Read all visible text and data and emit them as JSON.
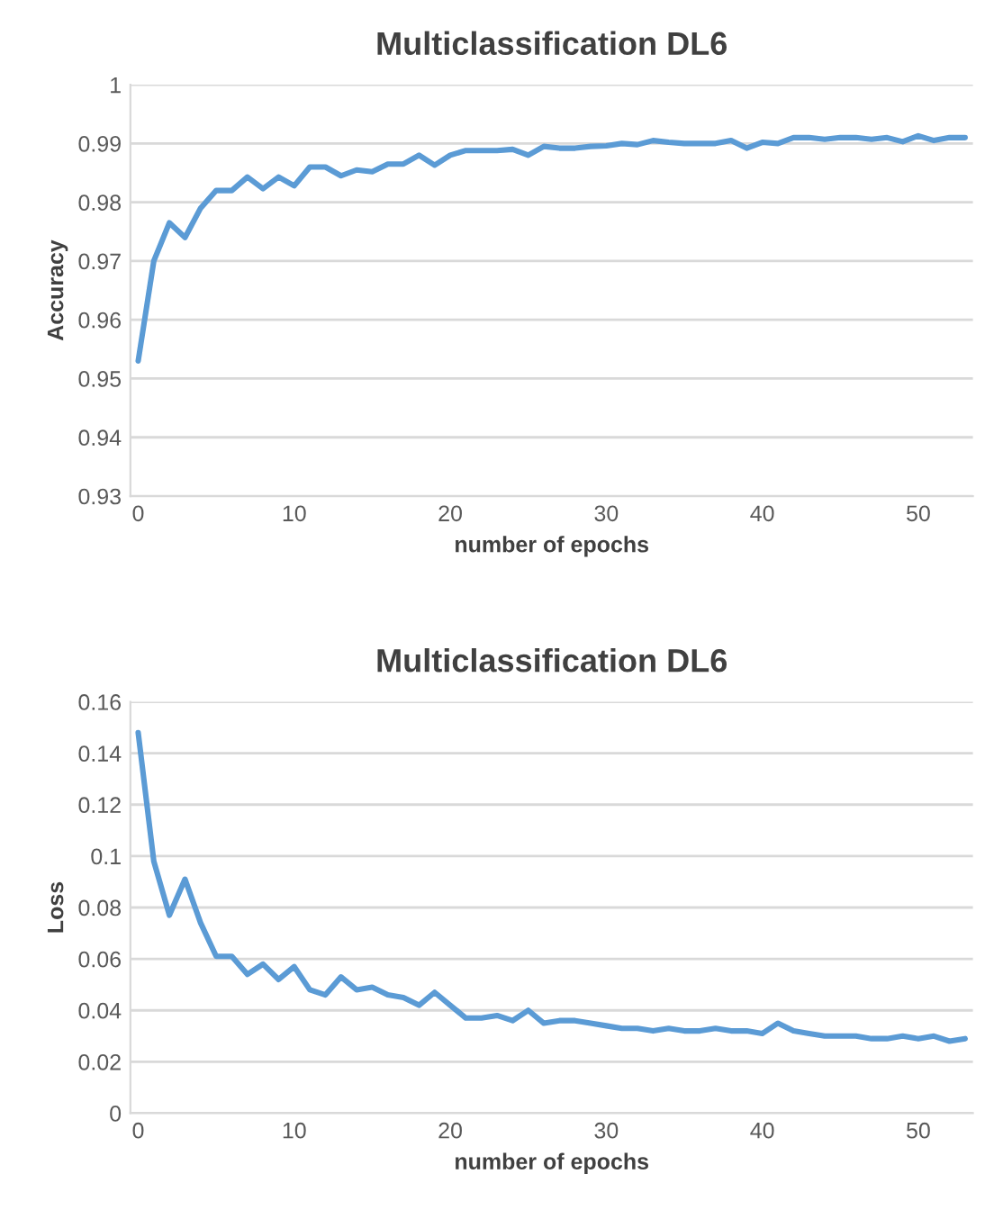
{
  "chart_data": [
    {
      "type": "line",
      "title": "Multiclassification DL6",
      "xlabel": "number of epochs",
      "ylabel": "Accuracy",
      "x": [
        0,
        1,
        2,
        3,
        4,
        5,
        6,
        7,
        8,
        9,
        10,
        11,
        12,
        13,
        14,
        15,
        16,
        17,
        18,
        19,
        20,
        21,
        22,
        23,
        24,
        25,
        26,
        27,
        28,
        29,
        30,
        31,
        32,
        33,
        34,
        35,
        36,
        37,
        38,
        39,
        40,
        41,
        42,
        43,
        44,
        45,
        46,
        47,
        48,
        49,
        50,
        51,
        52,
        53
      ],
      "series": [
        {
          "color": "#5b9bd5",
          "values": [
            0.953,
            0.97,
            0.9765,
            0.974,
            0.979,
            0.982,
            0.982,
            0.9843,
            0.9823,
            0.9843,
            0.9828,
            0.986,
            0.986,
            0.9845,
            0.9855,
            0.9852,
            0.9865,
            0.9865,
            0.988,
            0.9863,
            0.988,
            0.9888,
            0.9888,
            0.9888,
            0.989,
            0.988,
            0.9895,
            0.9892,
            0.9892,
            0.9895,
            0.9896,
            0.99,
            0.9898,
            0.9905,
            0.9902,
            0.99,
            0.99,
            0.99,
            0.9905,
            0.9892,
            0.9902,
            0.99,
            0.991,
            0.991,
            0.9907,
            0.991,
            0.991,
            0.9907,
            0.991,
            0.9903,
            0.9913,
            0.9905,
            0.991,
            0.991
          ]
        }
      ],
      "xlim": [
        -0.5,
        53.5
      ],
      "xticks": [
        0,
        10,
        20,
        30,
        40,
        50
      ],
      "ylim": [
        0.93,
        1
      ],
      "yticks": [
        0.93,
        0.94,
        0.95,
        0.96,
        0.97,
        0.98,
        0.99,
        1
      ],
      "grid": "y",
      "marker": "none",
      "line_style": "solid"
    },
    {
      "type": "line",
      "title": "Multiclassification DL6",
      "xlabel": "number of epochs",
      "ylabel": "Loss",
      "x": [
        0,
        1,
        2,
        3,
        4,
        5,
        6,
        7,
        8,
        9,
        10,
        11,
        12,
        13,
        14,
        15,
        16,
        17,
        18,
        19,
        20,
        21,
        22,
        23,
        24,
        25,
        26,
        27,
        28,
        29,
        30,
        31,
        32,
        33,
        34,
        35,
        36,
        37,
        38,
        39,
        40,
        41,
        42,
        43,
        44,
        45,
        46,
        47,
        48,
        49,
        50,
        51,
        52,
        53
      ],
      "series": [
        {
          "color": "#5b9bd5",
          "values": [
            0.148,
            0.098,
            0.077,
            0.091,
            0.074,
            0.061,
            0.061,
            0.054,
            0.058,
            0.052,
            0.057,
            0.048,
            0.046,
            0.053,
            0.048,
            0.049,
            0.046,
            0.045,
            0.042,
            0.047,
            0.042,
            0.037,
            0.037,
            0.038,
            0.036,
            0.04,
            0.035,
            0.036,
            0.036,
            0.035,
            0.034,
            0.033,
            0.033,
            0.032,
            0.033,
            0.032,
            0.032,
            0.033,
            0.032,
            0.032,
            0.031,
            0.035,
            0.032,
            0.031,
            0.03,
            0.03,
            0.03,
            0.029,
            0.029,
            0.03,
            0.029,
            0.03,
            0.028,
            0.029
          ]
        }
      ],
      "xlim": [
        -0.5,
        53.5
      ],
      "xticks": [
        0,
        10,
        20,
        30,
        40,
        50
      ],
      "ylim": [
        0,
        0.16
      ],
      "yticks": [
        0,
        0.02,
        0.04,
        0.06,
        0.08,
        0.1,
        0.12,
        0.14,
        0.16
      ],
      "grid": "y",
      "marker": "none",
      "line_style": "solid"
    }
  ]
}
